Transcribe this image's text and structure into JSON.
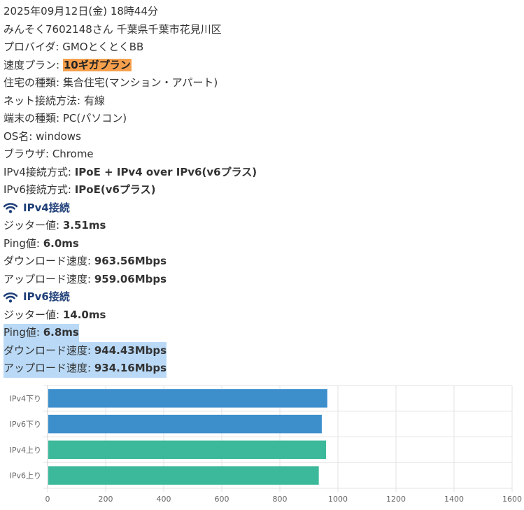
{
  "info": {
    "datetime": "2025年09月12日(金) 18時44分",
    "user": "みんそく7602148さん 千葉県千葉市花見川区",
    "provider_label": "プロバイダ: ",
    "provider": "GMOとくとくBB",
    "plan_label": "速度プラン: ",
    "plan": "10ギガプラン",
    "housing_label": "住宅の種類: ",
    "housing": "集合住宅(マンション・アパート)",
    "connection_label": "ネット接続方法: ",
    "connection": "有線",
    "device_label": "端末の種類: ",
    "device": "PC(パソコン)",
    "os_label": "OS名: ",
    "os": "windows",
    "browser_label": "ブラウザ: ",
    "browser": "Chrome",
    "ipv4_method_label": "IPv4接続方式: ",
    "ipv4_method": "IPoE + IPv4 over IPv6(v6プラス)",
    "ipv6_method_label": "IPv6接続方式: ",
    "ipv6_method": "IPoE(v6プラス)"
  },
  "ipv4": {
    "title": "IPv4接続",
    "icon": "wifi-icon",
    "jitter_label": "ジッター値: ",
    "jitter": "3.51ms",
    "ping_label": "Ping値: ",
    "ping": "6.0ms",
    "down_label": "ダウンロード速度: ",
    "down": "963.56Mbps",
    "up_label": "アップロード速度: ",
    "up": "959.06Mbps"
  },
  "ipv6": {
    "title": "IPv6接続",
    "icon": "wifi-icon",
    "jitter_label": "ジッター値: ",
    "jitter": "14.0ms",
    "ping_label": "Ping値: ",
    "ping": "6.8ms",
    "down_label": "ダウンロード速度: ",
    "down": "944.43Mbps",
    "up_label": "アップロード速度: ",
    "up": "934.16Mbps"
  },
  "colors": {
    "accent_plan": "#f6a04d",
    "section_title": "#1f3f78",
    "selection": "#b9d9f6",
    "bar_down": "#3d8fcc",
    "bar_up": "#3cb99b"
  },
  "chart_data": {
    "type": "bar",
    "orientation": "horizontal",
    "categories": [
      "IPv4下り",
      "IPv6下り",
      "IPv4上り",
      "IPv6上り"
    ],
    "values": [
      963.56,
      944.43,
      959.06,
      934.16
    ],
    "bar_colors": [
      "#3d8fcc",
      "#3d8fcc",
      "#3cb99b",
      "#3cb99b"
    ],
    "xlim": [
      0,
      1600
    ],
    "xticks": [
      "0",
      "200",
      "400",
      "600",
      "800",
      "1000",
      "1200",
      "1400",
      "1600"
    ],
    "grid": true
  }
}
